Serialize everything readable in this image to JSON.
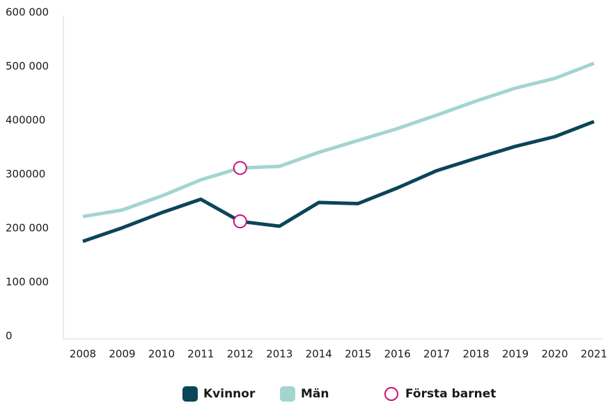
{
  "chart_data": {
    "type": "line",
    "categories": [
      "2008",
      "2009",
      "2010",
      "2011",
      "2012",
      "2013",
      "2014",
      "2015",
      "2016",
      "2017",
      "2018",
      "2019",
      "2020",
      "2021"
    ],
    "series": [
      {
        "name": "Kvinnor",
        "color": "#0b4558",
        "values": [
          181000,
          206000,
          234000,
          259000,
          218000,
          209000,
          253000,
          251000,
          280000,
          312000,
          335000,
          357000,
          375000,
          403000
        ]
      },
      {
        "name": "Män",
        "color": "#a3d5d0",
        "values": [
          227000,
          239000,
          265000,
          295000,
          317000,
          320000,
          346000,
          368000,
          390000,
          415000,
          441000,
          465000,
          483000,
          511000
        ]
      }
    ],
    "highlight": {
      "name": "Första barnet",
      "category": "2012",
      "color": "#c8107a"
    },
    "ylim": [
      0,
      600000
    ],
    "yticks": [
      0,
      {
        "value": 100000,
        "label": "100 000"
      },
      {
        "value": 200000,
        "label": "200 000"
      },
      300000,
      400000,
      {
        "value": 500000,
        "label": "500 000"
      },
      {
        "value": 600000,
        "label": "600 000"
      }
    ],
    "grid": false,
    "legend": "bottom"
  }
}
